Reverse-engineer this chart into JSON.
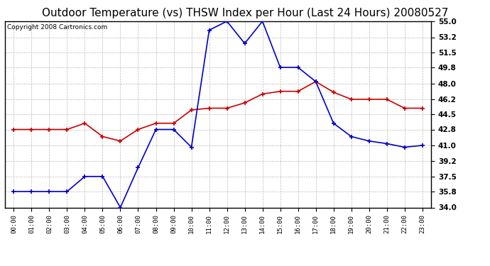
{
  "title": "Outdoor Temperature (vs) THSW Index per Hour (Last 24 Hours) 20080527",
  "copyright": "Copyright 2008 Cartronics.com",
  "hours": [
    "00:00",
    "01:00",
    "02:00",
    "03:00",
    "04:00",
    "05:00",
    "06:00",
    "07:00",
    "08:00",
    "09:00",
    "10:00",
    "11:00",
    "12:00",
    "13:00",
    "14:00",
    "15:00",
    "16:00",
    "17:00",
    "18:00",
    "19:00",
    "20:00",
    "21:00",
    "22:00",
    "23:00"
  ],
  "temp_red": [
    42.8,
    42.8,
    42.8,
    42.8,
    43.5,
    42.0,
    41.5,
    42.8,
    43.5,
    43.5,
    45.0,
    45.2,
    45.2,
    45.8,
    46.8,
    47.1,
    47.1,
    48.2,
    47.0,
    46.2,
    46.2,
    46.2,
    45.2,
    45.2
  ],
  "thsw_blue": [
    35.8,
    35.8,
    35.8,
    35.8,
    37.5,
    37.5,
    34.0,
    38.5,
    42.8,
    42.8,
    40.8,
    54.0,
    55.0,
    52.5,
    55.0,
    49.8,
    49.8,
    48.2,
    43.5,
    42.0,
    41.5,
    41.2,
    40.8,
    41.0
  ],
  "ylim_min": 34.0,
  "ylim_max": 55.0,
  "yticks": [
    34.0,
    35.8,
    37.5,
    39.2,
    41.0,
    42.8,
    44.5,
    46.2,
    48.0,
    49.8,
    51.5,
    53.2,
    55.0
  ],
  "bg_color": "#ffffff",
  "plot_bg_color": "#ffffff",
  "grid_color": "#bbbbbb",
  "red_color": "#cc0000",
  "blue_color": "#0000cc",
  "title_fontsize": 11,
  "copyright_fontsize": 6.5,
  "tick_fontsize": 7.5,
  "xtick_fontsize": 6.5
}
